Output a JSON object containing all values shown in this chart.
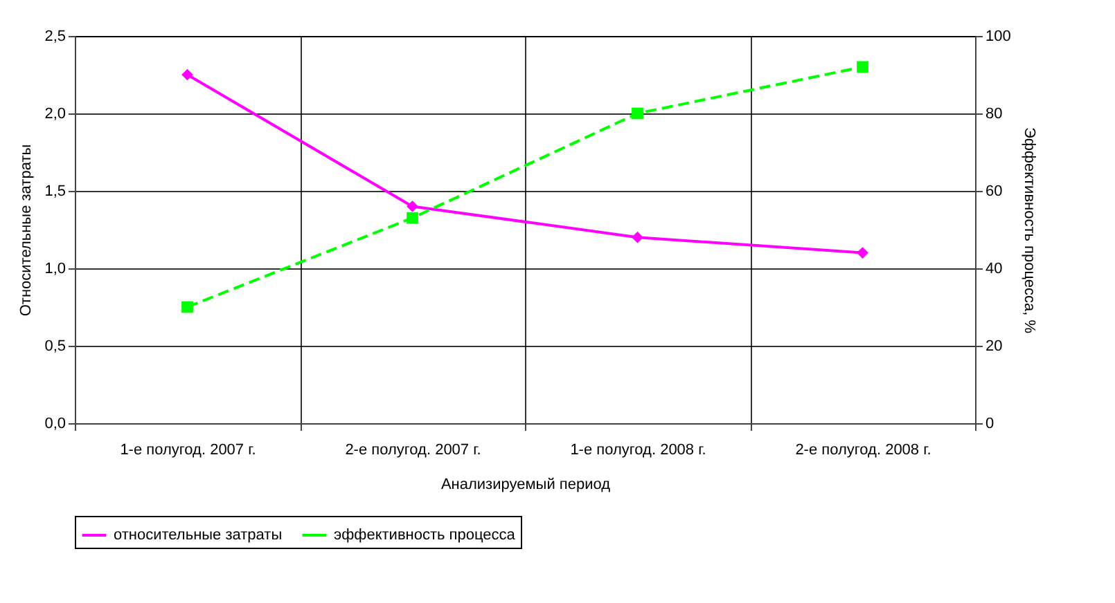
{
  "chart_data": {
    "type": "line",
    "xlabel": "Анализируемый период",
    "ylabel": "Относительные затраты",
    "y2label": "Эффективность процесса, %",
    "categories": [
      "1-е полугод. 2007 г.",
      "2-е полугод. 2007 г.",
      "1-е полугод. 2008 г.",
      "2-е полугод. 2008 г."
    ],
    "series": [
      {
        "name": "относительные затраты",
        "color": "#ff00ff",
        "values": [
          2.25,
          1.4,
          1.2,
          1.1
        ],
        "marker": "diamond",
        "line_style": "solid"
      },
      {
        "name": "эффективность процесса",
        "color": "#00ff00",
        "values": [
          30,
          53,
          80,
          92
        ],
        "axis": "y2",
        "marker": "square",
        "line_style": "dashed"
      }
    ],
    "ylim": [
      0,
      2.5
    ],
    "yticks": [
      {
        "value": 0,
        "label": "0,0"
      },
      {
        "value": 0.5,
        "label": "0,5"
      },
      {
        "value": 1,
        "label": "1,0"
      },
      {
        "value": 1.5,
        "label": "1,5"
      },
      {
        "value": 2,
        "label": "2,0"
      },
      {
        "value": 2.5,
        "label": "2,5"
      }
    ],
    "y2lim": [
      0,
      100
    ],
    "y2ticks": [
      0,
      20,
      40,
      60,
      80,
      100
    ],
    "grid": true,
    "legend": "bottom"
  }
}
